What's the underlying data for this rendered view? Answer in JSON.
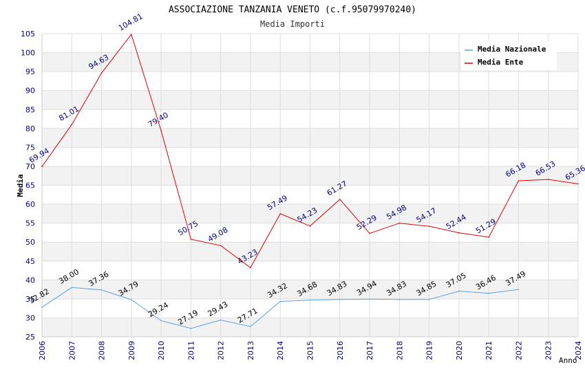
{
  "chart_data": {
    "type": "line",
    "title": "ASSOCIAZIONE TANZANIA VENETO (c.f.95079970240)",
    "subtitle": "Media Importi",
    "xlabel": "Anno",
    "ylabel": "Media",
    "ylim": [
      25,
      105
    ],
    "ytick_step": 5,
    "grid": true,
    "legend_position": "top-right",
    "x": [
      2006,
      2007,
      2008,
      2009,
      2010,
      2011,
      2012,
      2013,
      2014,
      2015,
      2016,
      2017,
      2018,
      2019,
      2020,
      2021,
      2022,
      2023,
      2024
    ],
    "series": [
      {
        "name": "Media Nazionale",
        "color": "#5aa0e0",
        "label_color": "#000000",
        "values": [
          32.82,
          38.0,
          37.36,
          34.79,
          29.24,
          27.19,
          29.43,
          27.71,
          34.32,
          34.68,
          34.83,
          34.94,
          34.83,
          34.85,
          37.05,
          36.46,
          37.49,
          null,
          null
        ]
      },
      {
        "name": "Media Ente",
        "color": "#dd0000",
        "label_color": "#000080",
        "values": [
          69.94,
          81.01,
          94.63,
          104.81,
          79.4,
          50.75,
          49.08,
          43.23,
          57.49,
          54.23,
          61.27,
          52.29,
          54.98,
          54.17,
          52.44,
          51.29,
          66.18,
          66.53,
          65.36
        ]
      }
    ]
  }
}
